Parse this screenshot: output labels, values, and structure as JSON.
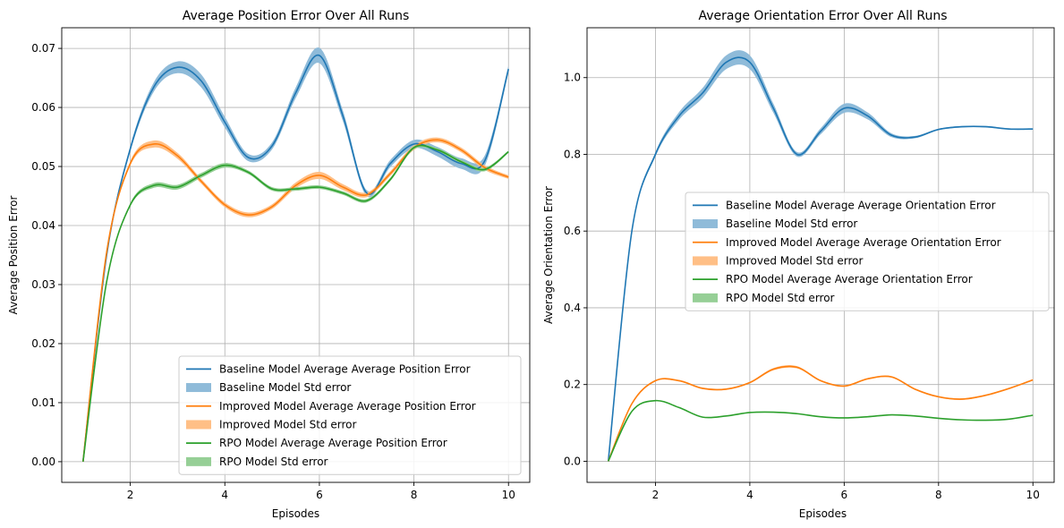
{
  "chart_data": [
    {
      "type": "line",
      "title": "Average Position Error Over All Runs",
      "xlabel": "Episodes",
      "ylabel": "Average Position Error",
      "xlim": [
        0.55,
        10.45
      ],
      "ylim": [
        -0.0035,
        0.0735
      ],
      "xticks": [
        2,
        4,
        6,
        8,
        10
      ],
      "yticks": [
        0.0,
        0.01,
        0.02,
        0.03,
        0.04,
        0.05,
        0.06,
        0.07
      ],
      "ytick_labels": [
        "0.00",
        "0.01",
        "0.02",
        "0.03",
        "0.04",
        "0.05",
        "0.06",
        "0.07"
      ],
      "grid": true,
      "legend_position": "lower-right",
      "x": [
        1.0,
        1.5,
        2.0,
        2.5,
        3.0,
        3.5,
        4.0,
        4.5,
        5.0,
        5.5,
        6.0,
        6.5,
        7.0,
        7.5,
        8.0,
        8.5,
        9.0,
        9.5,
        10.0
      ],
      "series": [
        {
          "name": "Baseline Model",
          "line_label": "Baseline Model Average Average Position Error",
          "band_label": "Baseline Model Std error",
          "color": "#1f77b4",
          "band_color": "#8fbbd9",
          "values": [
            0.0,
            0.035,
            0.053,
            0.0635,
            0.0668,
            0.0645,
            0.0575,
            0.0515,
            0.0535,
            0.0625,
            0.0688,
            0.0585,
            0.0455,
            0.0505,
            0.0538,
            0.0525,
            0.0505,
            0.051,
            0.0665
          ],
          "std": [
            0.0,
            0.0003,
            0.0005,
            0.0008,
            0.001,
            0.0011,
            0.0009,
            0.0006,
            0.0006,
            0.0009,
            0.0013,
            0.0009,
            0.0005,
            0.0006,
            0.0007,
            0.0008,
            0.0009,
            0.0009,
            0.0006
          ]
        },
        {
          "name": "Improved Model",
          "line_label": "Improved Model Average Average Position Error",
          "band_label": "Improved Model Std error",
          "color": "#ff7f0e",
          "band_color": "#ffbf86",
          "values": [
            0.0,
            0.0355,
            0.0505,
            0.0538,
            0.0518,
            0.0475,
            0.0435,
            0.0418,
            0.0432,
            0.0468,
            0.0485,
            0.0465,
            0.0452,
            0.0488,
            0.0532,
            0.0545,
            0.0528,
            0.0498,
            0.0482
          ],
          "std": [
            0.0,
            0.0003,
            0.0004,
            0.0006,
            0.0005,
            0.0004,
            0.0004,
            0.0004,
            0.0004,
            0.0005,
            0.0006,
            0.0005,
            0.0004,
            0.0004,
            0.0004,
            0.0004,
            0.0004,
            0.0004,
            0.0003
          ]
        },
        {
          "name": "RPO Model",
          "line_label": "RPO Model Average Average Position Error",
          "band_label": "RPO Model Std error",
          "color": "#2ca02c",
          "band_color": "#96cf96",
          "values": [
            0.0,
            0.0305,
            0.0435,
            0.0468,
            0.0465,
            0.0485,
            0.0502,
            0.049,
            0.0462,
            0.0462,
            0.0465,
            0.0455,
            0.0442,
            0.0478,
            0.0532,
            0.0528,
            0.0508,
            0.0495,
            0.0525
          ],
          "std": [
            0.0,
            0.0002,
            0.0003,
            0.0004,
            0.0004,
            0.0004,
            0.0004,
            0.0003,
            0.0003,
            0.0003,
            0.0003,
            0.0003,
            0.0003,
            0.0003,
            0.0003,
            0.0003,
            0.0003,
            0.0003,
            0.0002
          ]
        }
      ]
    },
    {
      "type": "line",
      "title": "Average Orientation Error Over All Runs",
      "xlabel": "Episodes",
      "ylabel": "Average Orientation Error",
      "xlim": [
        0.55,
        10.45
      ],
      "ylim": [
        -0.055,
        1.13
      ],
      "xticks": [
        2,
        4,
        6,
        8,
        10
      ],
      "yticks": [
        0.0,
        0.2,
        0.4,
        0.6,
        0.8,
        1.0
      ],
      "ytick_labels": [
        "0.0",
        "0.2",
        "0.4",
        "0.6",
        "0.8",
        "1.0"
      ],
      "grid": true,
      "legend_position": "center-right",
      "x": [
        1.0,
        1.5,
        2.0,
        2.5,
        3.0,
        3.5,
        4.0,
        4.5,
        5.0,
        5.5,
        6.0,
        6.5,
        7.0,
        7.5,
        8.0,
        8.5,
        9.0,
        9.5,
        10.0
      ],
      "series": [
        {
          "name": "Baseline Model",
          "line_label": "Baseline Model Average Average Orientation Error",
          "band_label": "Baseline Model Std error",
          "color": "#1f77b4",
          "band_color": "#8fbbd9",
          "values": [
            0.0,
            0.6,
            0.8,
            0.9,
            0.96,
            1.04,
            1.04,
            0.92,
            0.8,
            0.86,
            0.92,
            0.9,
            0.85,
            0.845,
            0.865,
            0.872,
            0.872,
            0.866,
            0.866
          ],
          "std": [
            0.0,
            0.004,
            0.006,
            0.01,
            0.013,
            0.018,
            0.018,
            0.012,
            0.006,
            0.008,
            0.012,
            0.009,
            0.005,
            0.003,
            0.002,
            0.002,
            0.002,
            0.002,
            0.002
          ]
        },
        {
          "name": "Improved Model",
          "line_label": "Improved Model Average Average Orientation Error",
          "band_label": "Improved Model Std error",
          "color": "#ff7f0e",
          "band_color": "#ffbf86",
          "values": [
            0.0,
            0.15,
            0.21,
            0.21,
            0.19,
            0.188,
            0.205,
            0.24,
            0.245,
            0.21,
            0.196,
            0.215,
            0.22,
            0.188,
            0.168,
            0.162,
            0.172,
            0.19,
            0.212
          ],
          "std": [
            0.0,
            0.002,
            0.002,
            0.002,
            0.002,
            0.002,
            0.002,
            0.003,
            0.003,
            0.002,
            0.002,
            0.002,
            0.002,
            0.002,
            0.002,
            0.002,
            0.002,
            0.002,
            0.002
          ]
        },
        {
          "name": "RPO Model",
          "line_label": "RPO Model Average Average Orientation Error",
          "band_label": "RPO Model Std error",
          "color": "#2ca02c",
          "band_color": "#96cf96",
          "values": [
            0.0,
            0.13,
            0.158,
            0.14,
            0.115,
            0.118,
            0.127,
            0.128,
            0.124,
            0.116,
            0.113,
            0.116,
            0.121,
            0.118,
            0.112,
            0.108,
            0.107,
            0.11,
            0.12
          ],
          "std": [
            0.0,
            0.001,
            0.001,
            0.001,
            0.001,
            0.001,
            0.001,
            0.001,
            0.001,
            0.001,
            0.001,
            0.001,
            0.001,
            0.001,
            0.001,
            0.001,
            0.001,
            0.001,
            0.001
          ]
        }
      ]
    }
  ]
}
